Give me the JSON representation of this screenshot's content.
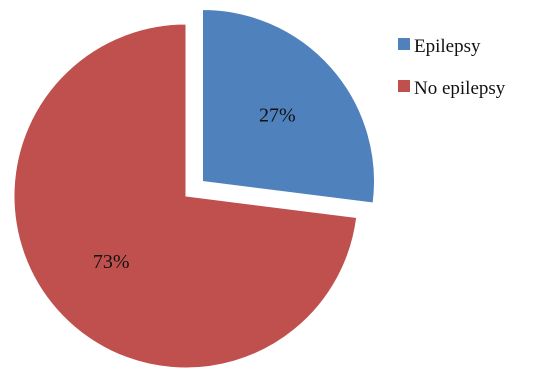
{
  "chart_data": {
    "type": "pie",
    "categories": [
      "Epilepsy",
      "No epilepsy"
    ],
    "values": [
      27,
      73
    ],
    "data_labels": [
      "27%",
      "73%"
    ],
    "colors": [
      "#4f81bd",
      "#c0504d"
    ],
    "exploded": [
      "Epilepsy"
    ],
    "legend": {
      "position": "top-right",
      "entries": [
        "Epilepsy",
        "No epilepsy"
      ]
    },
    "title": ""
  }
}
